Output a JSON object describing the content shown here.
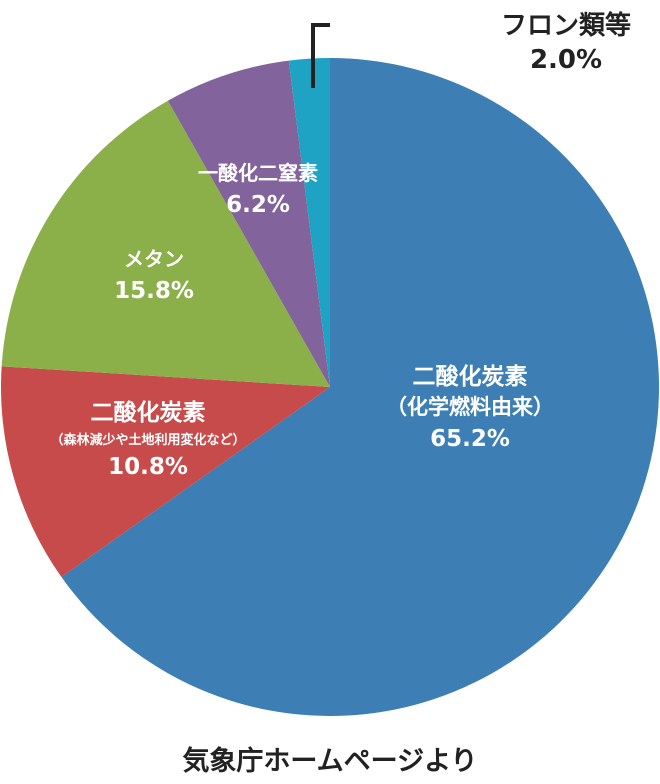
{
  "chart_data": {
    "type": "pie",
    "slices": [
      {
        "label": "二酸化炭素",
        "sublabel": "（化学燃料由来）",
        "value": 65.2,
        "value_text": "65.2%",
        "color": "#3d7fb5"
      },
      {
        "label": "二酸化炭素",
        "sublabel": "（森林減少や土地利用変化など）",
        "value": 10.8,
        "value_text": "10.8%",
        "color": "#c84b4b"
      },
      {
        "label": "メタン",
        "sublabel": "",
        "value": 15.8,
        "value_text": "15.8%",
        "color": "#8bb04a"
      },
      {
        "label": "一酸化二窒素",
        "sublabel": "",
        "value": 6.2,
        "value_text": "6.2%",
        "color": "#82639b"
      },
      {
        "label": "フロン類等",
        "sublabel": "",
        "value": 2.0,
        "value_text": "2.0%",
        "color": "#1fa3c4"
      }
    ]
  },
  "source": "気象庁ホームページより"
}
